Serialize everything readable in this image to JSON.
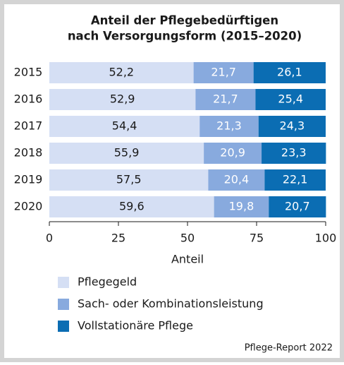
{
  "chart_data": {
    "type": "stacked_barh",
    "title": [
      "Anteil der Pflegebedürftigen",
      "nach Versorgungsform (2015–2020)"
    ],
    "categories": [
      "2015",
      "2016",
      "2017",
      "2018",
      "2019",
      "2020"
    ],
    "series": [
      {
        "name": "Pflegegeld",
        "color": "#d5dff4",
        "label_color": "#1a1a1a",
        "values": [
          52.2,
          52.9,
          54.4,
          55.9,
          57.5,
          59.6
        ],
        "value_labels": [
          "52,2",
          "52,9",
          "54,4",
          "55,9",
          "57,5",
          "59,6"
        ]
      },
      {
        "name": "Sach- oder Kombinationsleistung",
        "color": "#88aade",
        "label_color": "#ffffff",
        "values": [
          21.7,
          21.7,
          21.3,
          20.9,
          20.4,
          19.8
        ],
        "value_labels": [
          "21,7",
          "21,7",
          "21,3",
          "20,9",
          "20,4",
          "19,8"
        ]
      },
      {
        "name": "Vollstationäre Pflege",
        "color": "#0b6db3",
        "label_color": "#ffffff",
        "values": [
          26.1,
          25.4,
          24.3,
          23.3,
          22.1,
          20.7
        ],
        "value_labels": [
          "26,1",
          "25,4",
          "24,3",
          "23,3",
          "22,1",
          "20,7"
        ]
      }
    ],
    "xlabel": "Anteil",
    "xlim": [
      0,
      100
    ],
    "xticks": [
      0,
      25,
      50,
      75,
      100
    ],
    "source": "Pflege-Report 2022"
  }
}
